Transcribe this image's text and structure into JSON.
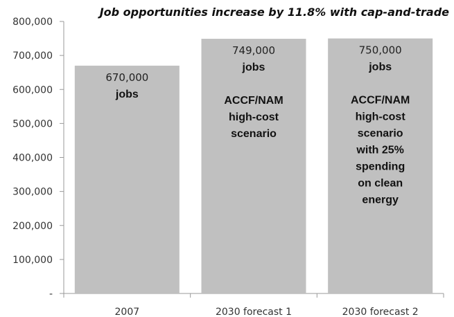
{
  "chart_data": {
    "type": "bar",
    "title": "Job opportunities increase by 11.8% with cap-and-trade",
    "xlabel": "",
    "ylabel": "",
    "categories": [
      "2007",
      "2030 forecast 1",
      "2030 forecast 2"
    ],
    "values": [
      670000,
      749000,
      750000
    ],
    "ylim": [
      0,
      800000
    ],
    "yticks": [
      0,
      100000,
      200000,
      300000,
      400000,
      500000,
      600000,
      700000,
      800000
    ],
    "ytick_labels": [
      "-",
      "100,000",
      "200,000",
      "300,000",
      "400,000",
      "500,000",
      "600,000",
      "700,000",
      "800,000"
    ],
    "bar_color": "#c0c0c0",
    "grid": false,
    "data_labels": [
      [
        "670,000",
        "jobs"
      ],
      [
        "749,000",
        "jobs"
      ],
      [
        "750,000",
        "jobs"
      ]
    ],
    "bar_notes": [
      [],
      [
        "ACCF/NAM",
        "high-cost",
        "scenario"
      ],
      [
        "ACCF/NAM",
        "high-cost",
        "scenario",
        "with 25%",
        "spending",
        "on clean",
        "energy"
      ]
    ]
  }
}
